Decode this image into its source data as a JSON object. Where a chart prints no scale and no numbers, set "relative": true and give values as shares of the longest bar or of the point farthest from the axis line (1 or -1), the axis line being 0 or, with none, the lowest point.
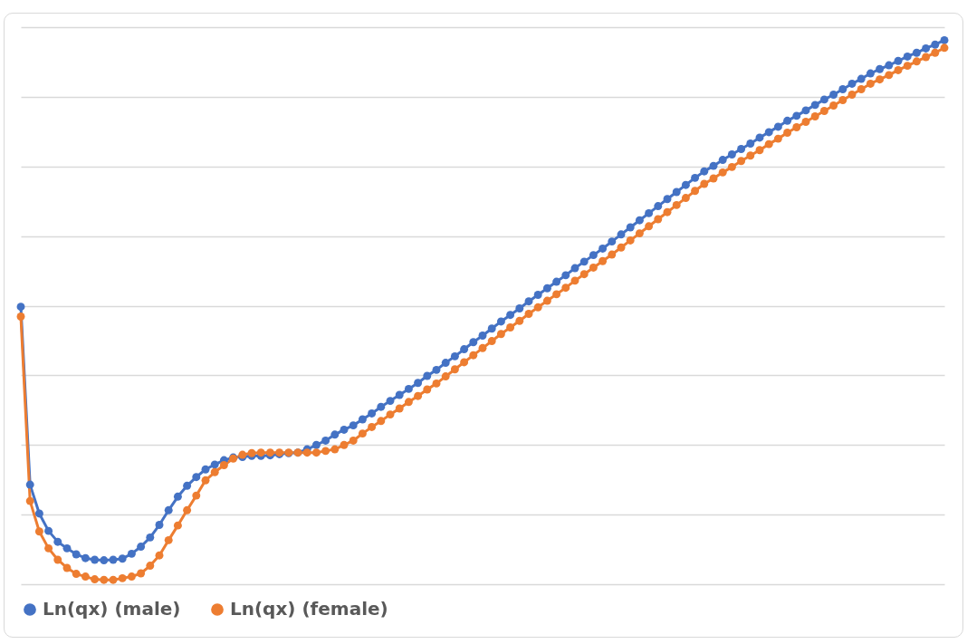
{
  "chart_data": {
    "type": "line",
    "relative": true,
    "grid": "y",
    "legend": "bottom",
    "marker": "circle",
    "line_style": "solid",
    "categories": [
      null,
      null,
      null,
      null,
      null,
      null,
      null,
      null,
      null,
      null,
      null,
      null,
      null,
      null,
      null,
      null,
      null,
      null,
      null,
      null,
      null,
      null,
      null,
      null,
      null,
      null,
      null,
      null,
      null,
      null,
      null,
      null,
      null,
      null,
      null,
      null,
      null,
      null,
      null,
      null,
      null,
      null,
      null,
      null,
      null,
      null,
      null,
      null,
      null,
      null,
      null,
      null,
      null,
      null,
      null,
      null,
      null,
      null,
      null,
      null,
      null,
      null,
      null,
      null,
      null,
      null,
      null,
      null,
      null,
      null,
      null,
      null,
      null,
      null,
      null,
      null,
      null,
      null,
      null,
      null,
      null,
      null,
      null,
      null,
      null,
      null,
      null,
      null,
      null,
      null,
      null,
      null,
      null,
      null,
      null,
      null,
      null,
      null,
      null,
      null,
      null
    ],
    "series": [
      {
        "name": "Ln(qx) (male)",
        "color": "#4472c4",
        "values": [
          0.51,
          0.183,
          0.13,
          0.098,
          0.078,
          0.066,
          0.055,
          0.048,
          0.045,
          0.044,
          0.045,
          0.047,
          0.056,
          0.069,
          0.086,
          0.109,
          0.136,
          0.161,
          0.181,
          0.197,
          0.211,
          0.22,
          0.228,
          0.233,
          0.234,
          0.236,
          0.236,
          0.237,
          0.239,
          0.241,
          0.242,
          0.248,
          0.256,
          0.264,
          0.275,
          0.284,
          0.292,
          0.303,
          0.314,
          0.326,
          0.337,
          0.348,
          0.359,
          0.37,
          0.383,
          0.394,
          0.407,
          0.419,
          0.432,
          0.445,
          0.457,
          0.47,
          0.483,
          0.495,
          0.507,
          0.52,
          0.532,
          0.544,
          0.556,
          0.568,
          0.581,
          0.593,
          0.605,
          0.617,
          0.63,
          0.643,
          0.656,
          0.669,
          0.682,
          0.695,
          0.708,
          0.721,
          0.734,
          0.747,
          0.759,
          0.769,
          0.78,
          0.79,
          0.8,
          0.81,
          0.821,
          0.831,
          0.841,
          0.852,
          0.861,
          0.871,
          0.881,
          0.891,
          0.9,
          0.91,
          0.92,
          0.929,
          0.939,
          0.947,
          0.954,
          0.962,
          0.97,
          0.977,
          0.985,
          0.992,
          1.0
        ]
      },
      {
        "name": "Ln(qx) (female)",
        "color": "#ed7d31",
        "values": [
          0.492,
          0.153,
          0.097,
          0.066,
          0.045,
          0.03,
          0.019,
          0.014,
          0.009,
          0.008,
          0.008,
          0.011,
          0.014,
          0.02,
          0.034,
          0.053,
          0.081,
          0.108,
          0.136,
          0.163,
          0.191,
          0.206,
          0.219,
          0.231,
          0.238,
          0.241,
          0.242,
          0.242,
          0.242,
          0.242,
          0.242,
          0.242,
          0.242,
          0.245,
          0.248,
          0.256,
          0.264,
          0.277,
          0.289,
          0.3,
          0.312,
          0.323,
          0.335,
          0.346,
          0.358,
          0.369,
          0.382,
          0.395,
          0.408,
          0.421,
          0.434,
          0.447,
          0.46,
          0.472,
          0.484,
          0.497,
          0.509,
          0.521,
          0.533,
          0.545,
          0.558,
          0.57,
          0.582,
          0.594,
          0.606,
          0.619,
          0.632,
          0.645,
          0.658,
          0.671,
          0.684,
          0.697,
          0.71,
          0.723,
          0.736,
          0.746,
          0.757,
          0.767,
          0.778,
          0.788,
          0.798,
          0.809,
          0.819,
          0.83,
          0.84,
          0.85,
          0.86,
          0.87,
          0.88,
          0.89,
          0.9,
          0.91,
          0.92,
          0.928,
          0.936,
          0.945,
          0.953,
          0.961,
          0.969,
          0.977,
          0.986
        ]
      }
    ]
  }
}
